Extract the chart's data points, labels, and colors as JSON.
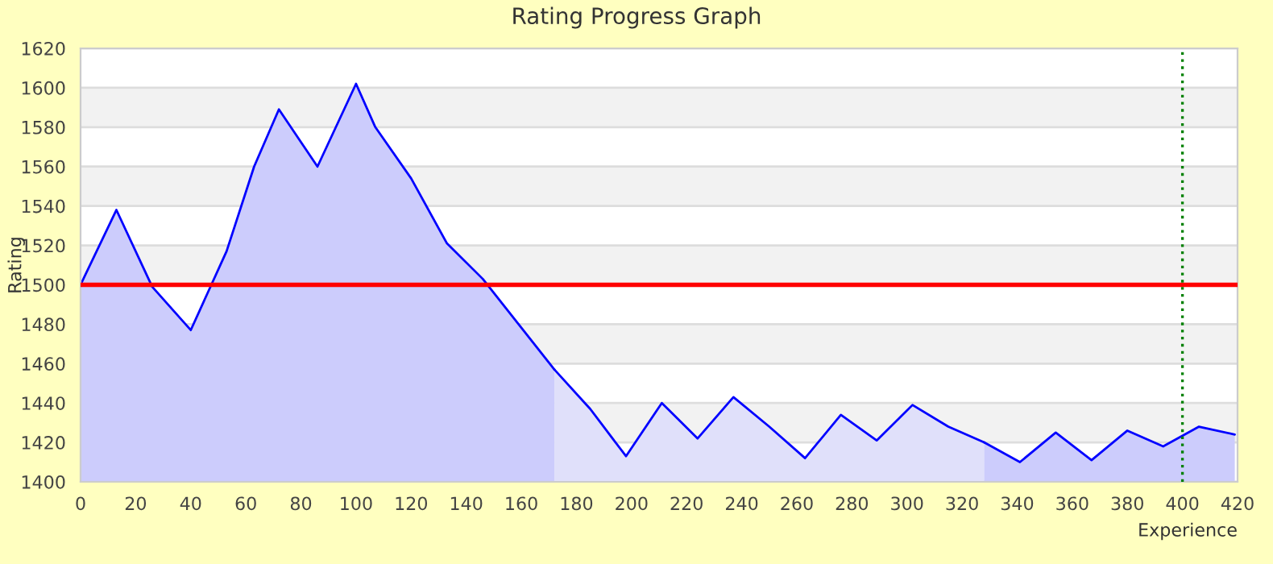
{
  "chart_data": {
    "type": "area",
    "title": "Rating Progress Graph",
    "xlabel": "Experience",
    "ylabel": "Rating",
    "xlim": [
      0,
      420
    ],
    "ylim": [
      1400,
      1620
    ],
    "xticks": [
      0,
      20,
      40,
      60,
      80,
      100,
      120,
      140,
      160,
      180,
      200,
      220,
      240,
      260,
      280,
      300,
      320,
      340,
      360,
      380,
      400,
      420
    ],
    "yticks": [
      1400,
      1420,
      1440,
      1460,
      1480,
      1500,
      1520,
      1540,
      1560,
      1580,
      1600,
      1620
    ],
    "grid": "y",
    "legend": false,
    "series": [
      {
        "color": "#ccccfc",
        "x": [
          0,
          13,
          26,
          40,
          53,
          63,
          72,
          86,
          100,
          107,
          120,
          133,
          146,
          159,
          172
        ],
        "values": [
          1500,
          1538,
          1499,
          1477,
          1517,
          1560,
          1589,
          1560,
          1602,
          1580,
          1554,
          1521,
          1503,
          1480,
          1457
        ]
      },
      {
        "color": "#e0e0fa",
        "x": [
          172,
          185,
          198,
          211,
          224,
          237,
          250,
          263,
          276,
          289,
          302,
          315,
          328
        ],
        "values": [
          1457,
          1437,
          1413,
          1440,
          1422,
          1443,
          1428,
          1412,
          1434,
          1421,
          1439,
          1428,
          1420
        ]
      },
      {
        "color": "#ccccfc",
        "x": [
          328,
          341,
          354,
          367,
          380,
          393,
          406,
          419
        ],
        "values": [
          1420,
          1410,
          1425,
          1411,
          1426,
          1418,
          1428,
          1424
        ]
      }
    ],
    "ref_lines": [
      {
        "axis": "y",
        "value": 1500,
        "color": "#ff0000",
        "line_style": "solid"
      },
      {
        "axis": "x",
        "value": 400,
        "color": "#008000",
        "line_style": "dotted"
      }
    ]
  }
}
